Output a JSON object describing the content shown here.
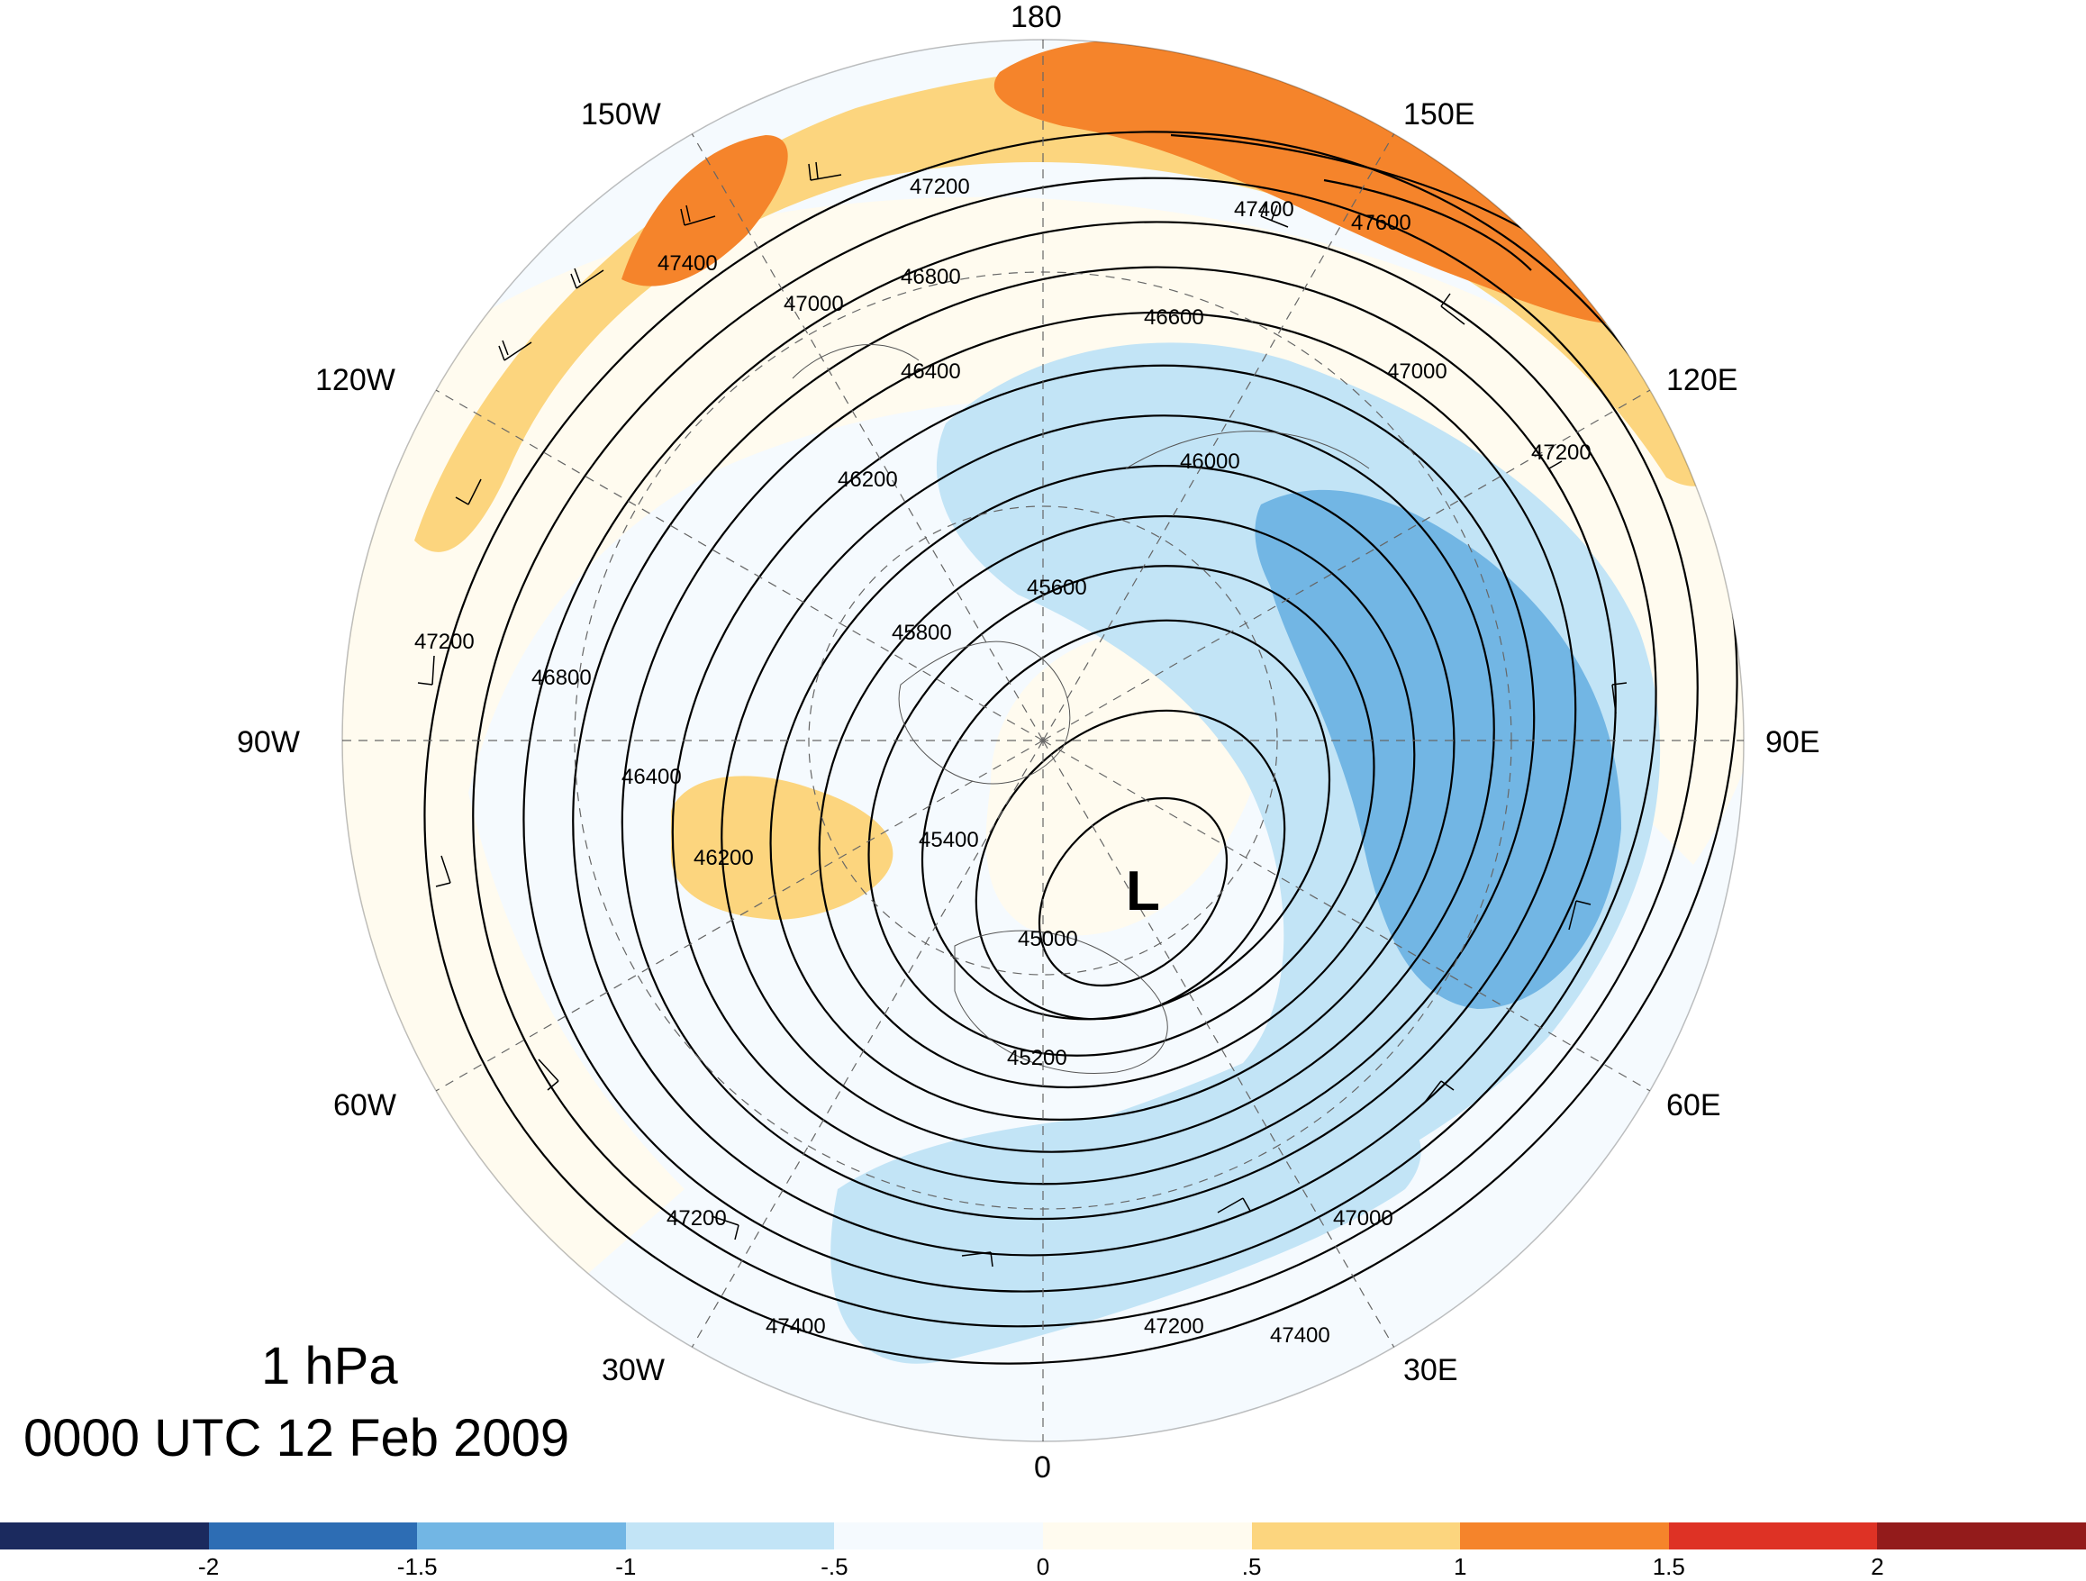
{
  "title": {
    "level": "1 hPa",
    "time": "0000 UTC 12 Feb 2009"
  },
  "map": {
    "projection": "north-polar-stereographic",
    "longitude_labels": {
      "top": "180",
      "upper_left": "150W",
      "upper_right": "150E",
      "left_upper": "120W",
      "right_upper": "120E",
      "left": "90W",
      "right": "90E",
      "left_lower": "60W",
      "right_lower": "60E",
      "lower_left": "30W",
      "lower_right": "30E",
      "bottom": "0"
    },
    "low_marker": "L",
    "contour_labels": [
      "47400",
      "47200",
      "47000",
      "46800",
      "46600",
      "46400",
      "46200",
      "46000",
      "45800",
      "45600",
      "45400",
      "45200",
      "45000",
      "47600"
    ],
    "colors": {
      "strong_pos": "#F5842B",
      "pos": "#FCD57E",
      "weak_pos": "#FFFBEF",
      "weak_neg": "#F5FAFE",
      "neg": "#C2E4F6",
      "strong_neg": "#72B6E4",
      "contour": "#000000"
    }
  },
  "colorbar": {
    "colors": [
      "#1B2A5E",
      "#2D6DB4",
      "#72B6E4",
      "#C2E4F6",
      "#F5FAFE",
      "#FFFBEF",
      "#FCD57E",
      "#F5842B",
      "#DE3225",
      "#931B1B"
    ],
    "tick_labels": [
      "-2",
      "-1.5",
      "-1",
      "-.5",
      "0",
      ".5",
      "1",
      "1.5",
      "2"
    ]
  }
}
